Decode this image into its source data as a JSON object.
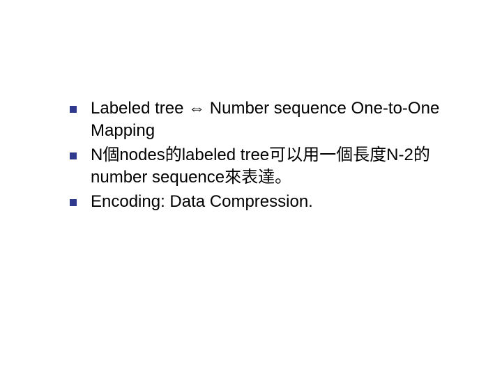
{
  "slide": {
    "background_color": "#ffffff",
    "bullet_color": "#2f3a8f",
    "text_color": "#000000",
    "font_size_pt": 24,
    "items": [
      {
        "text": "Labeled tree ⇔ Number sequence One-to-One Mapping"
      },
      {
        "text": "N個nodes的labeled tree可以用一個長度N-2的number sequence來表達。"
      },
      {
        "text": "Encoding: Data Compression."
      }
    ]
  }
}
